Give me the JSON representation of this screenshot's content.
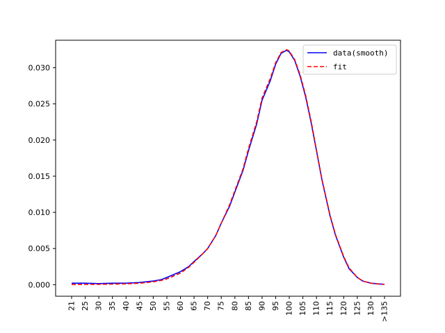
{
  "chart_data": {
    "type": "line",
    "title": "",
    "xlabel": "",
    "ylabel": "",
    "x_ticks": [
      "21",
      "25",
      "30",
      "35",
      "40",
      "45",
      "50",
      "55",
      "60",
      "65",
      "70",
      "75",
      "80",
      "85",
      "90",
      "95",
      "100",
      "105",
      "110",
      "115",
      "120",
      "125",
      "130",
      ">135"
    ],
    "ylim": [
      -0.0016,
      0.0338
    ],
    "y_ticks": [
      {
        "value": 0.0,
        "label": "0.000"
      },
      {
        "value": 0.005,
        "label": "0.005"
      },
      {
        "value": 0.01,
        "label": "0.010"
      },
      {
        "value": 0.015,
        "label": "0.015"
      },
      {
        "value": 0.02,
        "label": "0.020"
      },
      {
        "value": 0.025,
        "label": "0.025"
      },
      {
        "value": 0.03,
        "label": "0.030"
      }
    ],
    "legend": {
      "position": "top-right"
    },
    "grid": false,
    "series": [
      {
        "name": "data(smooth)",
        "color": "#0000ff",
        "style": "solid",
        "points": [
          [
            21,
            0.0002
          ],
          [
            25,
            0.0002
          ],
          [
            30,
            0.00015
          ],
          [
            35,
            0.0002
          ],
          [
            40,
            0.0002
          ],
          [
            45,
            0.0003
          ],
          [
            50,
            0.0005
          ],
          [
            53,
            0.0007
          ],
          [
            55,
            0.001
          ],
          [
            60,
            0.0018
          ],
          [
            63,
            0.0025
          ],
          [
            65,
            0.0032
          ],
          [
            68,
            0.0042
          ],
          [
            70,
            0.005
          ],
          [
            73,
            0.0068
          ],
          [
            75,
            0.0085
          ],
          [
            78,
            0.0108
          ],
          [
            80,
            0.0128
          ],
          [
            83,
            0.0158
          ],
          [
            85,
            0.0185
          ],
          [
            88,
            0.0222
          ],
          [
            90,
            0.0255
          ],
          [
            93,
            0.0282
          ],
          [
            95,
            0.0305
          ],
          [
            97,
            0.032
          ],
          [
            99,
            0.0324
          ],
          [
            100,
            0.0322
          ],
          [
            102,
            0.031
          ],
          [
            104,
            0.0288
          ],
          [
            106,
            0.026
          ],
          [
            108,
            0.0225
          ],
          [
            110,
            0.0185
          ],
          [
            112,
            0.0145
          ],
          [
            115,
            0.0095
          ],
          [
            117,
            0.0068
          ],
          [
            120,
            0.0038
          ],
          [
            122,
            0.0022
          ],
          [
            125,
            0.001
          ],
          [
            127,
            0.0005
          ],
          [
            130,
            0.0002
          ],
          [
            133,
            0.0001
          ],
          [
            135,
            5e-05
          ]
        ]
      },
      {
        "name": "fit",
        "color": "#ff0000",
        "style": "dashed",
        "points": [
          [
            21,
            2e-05
          ],
          [
            25,
            3e-05
          ],
          [
            30,
            5e-05
          ],
          [
            35,
            8e-05
          ],
          [
            40,
            0.00012
          ],
          [
            45,
            0.0002
          ],
          [
            50,
            0.0004
          ],
          [
            53,
            0.0006
          ],
          [
            55,
            0.0008
          ],
          [
            60,
            0.0016
          ],
          [
            63,
            0.0024
          ],
          [
            65,
            0.0031
          ],
          [
            68,
            0.0042
          ],
          [
            70,
            0.005
          ],
          [
            73,
            0.0068
          ],
          [
            75,
            0.0085
          ],
          [
            78,
            0.011
          ],
          [
            80,
            0.013
          ],
          [
            83,
            0.016
          ],
          [
            85,
            0.0188
          ],
          [
            88,
            0.0225
          ],
          [
            90,
            0.0258
          ],
          [
            93,
            0.0285
          ],
          [
            95,
            0.0307
          ],
          [
            97,
            0.0321
          ],
          [
            99,
            0.0325
          ],
          [
            100,
            0.0323
          ],
          [
            102,
            0.0311
          ],
          [
            104,
            0.029
          ],
          [
            106,
            0.0262
          ],
          [
            108,
            0.0227
          ],
          [
            110,
            0.0186
          ],
          [
            112,
            0.0146
          ],
          [
            115,
            0.0096
          ],
          [
            117,
            0.0069
          ],
          [
            120,
            0.0039
          ],
          [
            122,
            0.0023
          ],
          [
            125,
            0.001
          ],
          [
            127,
            0.0005
          ],
          [
            130,
            0.0002
          ],
          [
            133,
            8e-05
          ],
          [
            135,
            3e-05
          ]
        ]
      }
    ]
  }
}
